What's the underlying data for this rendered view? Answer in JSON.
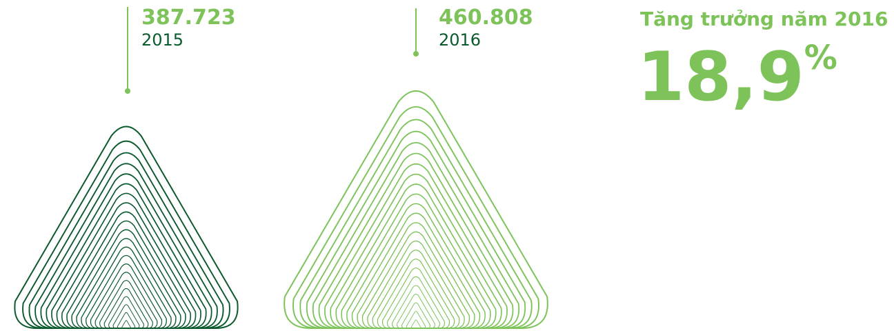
{
  "items": [
    {
      "value": "387.723",
      "year": "2015"
    },
    {
      "value": "460.808",
      "year": "2016"
    }
  ],
  "growth": {
    "label": "Tăng trưởng năm 2016",
    "value": "18,9",
    "unit": "%"
  }
}
